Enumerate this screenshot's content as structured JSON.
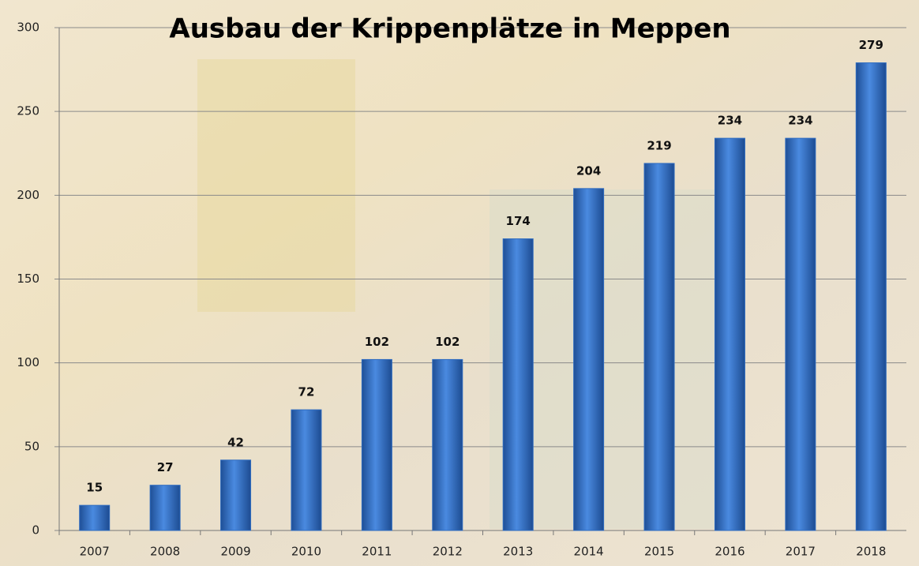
{
  "chart_data": {
    "type": "bar",
    "title": "Ausbau der Krippenplätze in Meppen",
    "categories": [
      "2007",
      "2008",
      "2009",
      "2010",
      "2011",
      "2012",
      "2013",
      "2014",
      "2015",
      "2016",
      "2017",
      "2018"
    ],
    "values": [
      15,
      27,
      42,
      72,
      102,
      102,
      174,
      204,
      219,
      234,
      234,
      279
    ],
    "color": "#2e6bc0",
    "ylim": [
      0,
      300
    ],
    "yticks": [
      0,
      50,
      100,
      150,
      200,
      250,
      300
    ],
    "grid": true,
    "data_labels": true
  }
}
